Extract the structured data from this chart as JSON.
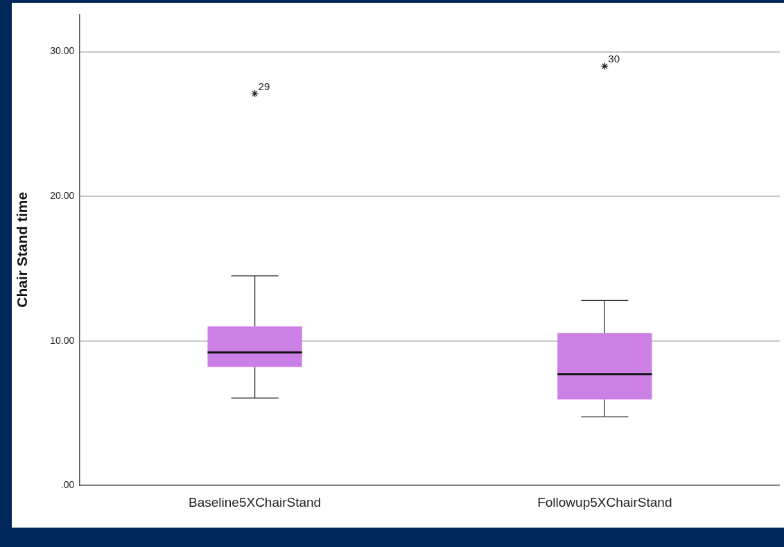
{
  "chart_data": {
    "type": "box",
    "ylabel": "Chair Stand time",
    "categories": [
      "Baseline5XChairStand",
      "Followup5XChairStand"
    ],
    "boxes": [
      {
        "low": 6.05,
        "q1": 8.2,
        "median": 9.2,
        "q3": 11.0,
        "high": 14.5,
        "outliers": [
          27.1
        ]
      },
      {
        "low": 4.75,
        "q1": 5.95,
        "median": 7.7,
        "q3": 10.55,
        "high": 12.8,
        "outliers": [
          29.0
        ]
      }
    ],
    "color": "#cc80e6",
    "marker": "star",
    "ylim": [
      0,
      32.6
    ],
    "yticks": [
      {
        "value": 0,
        "label": ".00"
      },
      {
        "value": 10,
        "label": "10.00"
      },
      {
        "value": 20,
        "label": "20.00"
      },
      {
        "value": 30,
        "label": "30.00"
      }
    ],
    "grid": "y",
    "annotations": [
      "29",
      "30"
    ]
  }
}
